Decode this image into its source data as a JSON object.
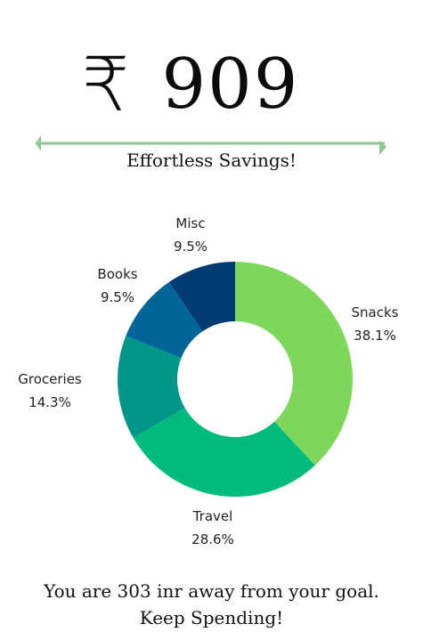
{
  "header": {
    "currency_symbol": "₹",
    "amount": "909",
    "tagline": "Effortless Savings!",
    "accent_color": "#8cc98c"
  },
  "chart_data": {
    "type": "pie",
    "donut": true,
    "categories": [
      "Snacks",
      "Travel",
      "Groceries",
      "Books",
      "Misc"
    ],
    "values": [
      38.1,
      28.6,
      14.3,
      9.5,
      9.5
    ],
    "value_labels": [
      "38.1%",
      "28.6%",
      "14.3%",
      "9.5%",
      "9.5%"
    ],
    "colors": [
      "#7dd75a",
      "#00bb7d",
      "#009688",
      "#00669a",
      "#003b72"
    ],
    "start_angle_deg": 0,
    "direction": "clockwise"
  },
  "footer": {
    "message": "You are 303 inr away from your goal.",
    "call_to_action": "Keep Spending!"
  }
}
